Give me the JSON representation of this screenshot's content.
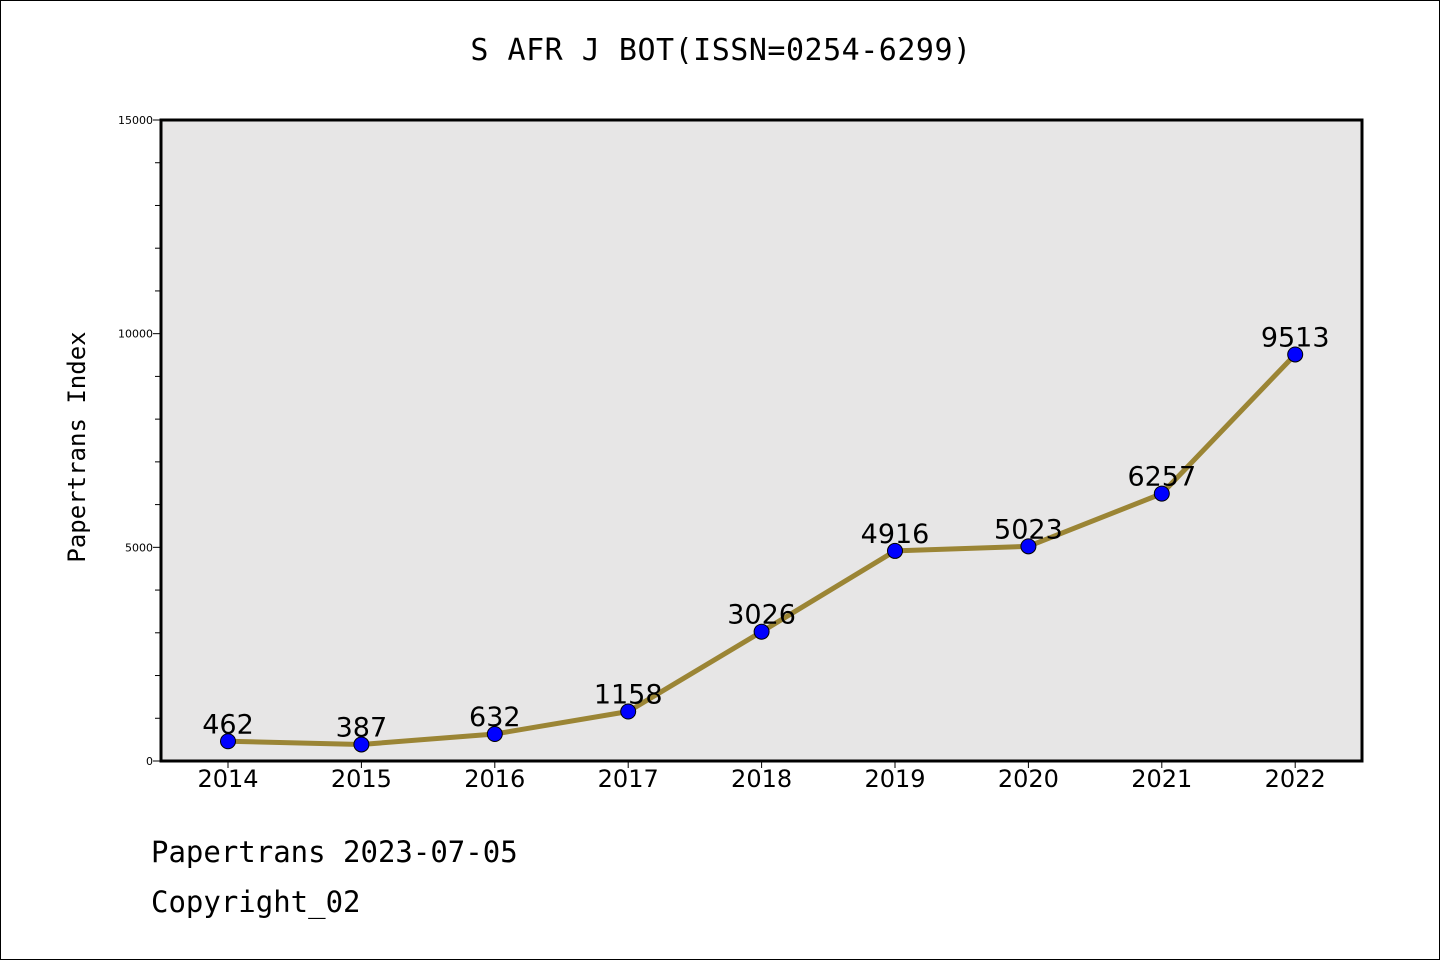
{
  "chart_data": {
    "type": "line",
    "title": "S AFR J BOT(ISSN=0254-6299)",
    "xlabel": "",
    "ylabel": "Papertrans Index",
    "categories": [
      "2014",
      "2015",
      "2016",
      "2017",
      "2018",
      "2019",
      "2020",
      "2021",
      "2022"
    ],
    "series": [
      {
        "values": [
          462,
          387,
          632,
          1158,
          3026,
          4916,
          5023,
          6257,
          9513
        ],
        "data_labels": [
          "462",
          "387",
          "632",
          "1158",
          "3026",
          "4916",
          "5023",
          "6257",
          "9513"
        ]
      }
    ],
    "ylim": [
      0,
      15000
    ],
    "y_ticks": [
      0,
      5000,
      10000,
      15000
    ],
    "y_tick_labels": [
      "0",
      "5000",
      "10000",
      "15000"
    ],
    "y_minor_step": 1000,
    "grid": false,
    "legend": "none",
    "colors": {
      "line": "#9b8535",
      "marker": "#0000ff",
      "plot_background": "#e7e6e6",
      "axes": "#000000"
    }
  },
  "footer": {
    "date_line": "Papertrans 2023-07-05",
    "copyright": "Copyright_02"
  }
}
